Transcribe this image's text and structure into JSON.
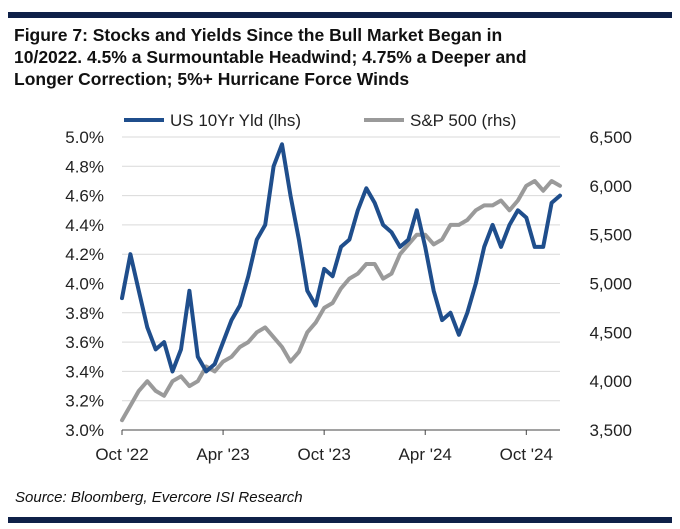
{
  "title_lines": [
    "Figure 7: Stocks and Yields Since the Bull Market Began in",
    "10/2022. 4.5% a Surmountable Headwind; 4.75% a Deeper and",
    "Longer Correction; 5%+ Hurricane Force Winds"
  ],
  "source": "Source: Bloomberg, Evercore ISI Research",
  "colors": {
    "yield": "#1f4e8c",
    "spx": "#9a9a9a",
    "bar": "#0e2048",
    "grid": "#d9d9d9"
  },
  "chart_data": {
    "type": "line",
    "x_ticks": [
      "Oct '22",
      "Apr '23",
      "Oct '23",
      "Apr '24",
      "Oct '24"
    ],
    "left_axis": {
      "label": "lhs",
      "ticks": [
        "3.0%",
        "3.2%",
        "3.4%",
        "3.6%",
        "3.8%",
        "4.0%",
        "4.2%",
        "4.4%",
        "4.6%",
        "4.8%",
        "5.0%"
      ],
      "range": [
        3.0,
        5.0
      ]
    },
    "right_axis": {
      "label": "rhs",
      "ticks": [
        "3,500",
        "4,000",
        "4,500",
        "5,000",
        "5,500",
        "6,000",
        "6,500"
      ],
      "range": [
        3500,
        6500
      ]
    },
    "grid": true,
    "legend": [
      "US 10Yr Yld (lhs)",
      "S&P 500 (rhs)"
    ],
    "series": [
      {
        "name": "US 10Yr Yld (lhs)",
        "axis": "left",
        "months": [
          0,
          0.5,
          1,
          1.5,
          2,
          2.5,
          3,
          3.5,
          4,
          4.5,
          5,
          5.5,
          6,
          6.5,
          7,
          7.5,
          8,
          8.5,
          9,
          9.5,
          10,
          10.5,
          11,
          11.5,
          12,
          12.5,
          13,
          13.5,
          14,
          14.5,
          15,
          15.5,
          16,
          16.5,
          17,
          17.5,
          18,
          18.5,
          19,
          19.5,
          20,
          20.5,
          21,
          21.5,
          22,
          22.5,
          23,
          23.5,
          24,
          24.5,
          25,
          25.5,
          26
        ],
        "values": [
          3.9,
          4.2,
          3.95,
          3.7,
          3.55,
          3.6,
          3.4,
          3.55,
          3.95,
          3.5,
          3.4,
          3.45,
          3.6,
          3.75,
          3.85,
          4.05,
          4.3,
          4.4,
          4.8,
          4.95,
          4.6,
          4.3,
          3.95,
          3.85,
          4.1,
          4.05,
          4.25,
          4.3,
          4.5,
          4.65,
          4.55,
          4.4,
          4.35,
          4.25,
          4.3,
          4.5,
          4.25,
          3.95,
          3.75,
          3.8,
          3.65,
          3.8,
          4.0,
          4.25,
          4.4,
          4.25,
          4.4,
          4.5,
          4.45,
          4.25,
          4.25,
          4.55,
          4.6
        ]
      },
      {
        "name": "S&P 500 (rhs)",
        "axis": "right",
        "months": [
          0,
          0.5,
          1,
          1.5,
          2,
          2.5,
          3,
          3.5,
          4,
          4.5,
          5,
          5.5,
          6,
          6.5,
          7,
          7.5,
          8,
          8.5,
          9,
          9.5,
          10,
          10.5,
          11,
          11.5,
          12,
          12.5,
          13,
          13.5,
          14,
          14.5,
          15,
          15.5,
          16,
          16.5,
          17,
          17.5,
          18,
          18.5,
          19,
          19.5,
          20,
          20.5,
          21,
          21.5,
          22,
          22.5,
          23,
          23.5,
          24,
          24.5,
          25,
          25.5,
          26
        ],
        "values": [
          3600,
          3750,
          3900,
          4000,
          3900,
          3850,
          4000,
          4050,
          3950,
          4000,
          4150,
          4100,
          4200,
          4250,
          4350,
          4400,
          4500,
          4550,
          4450,
          4350,
          4200,
          4300,
          4500,
          4600,
          4750,
          4800,
          4950,
          5050,
          5100,
          5200,
          5200,
          5050,
          5100,
          5300,
          5400,
          5500,
          5500,
          5400,
          5450,
          5600,
          5600,
          5650,
          5750,
          5800,
          5800,
          5850,
          5750,
          5850,
          6000,
          6050,
          5950,
          6050,
          6000
        ]
      }
    ]
  }
}
